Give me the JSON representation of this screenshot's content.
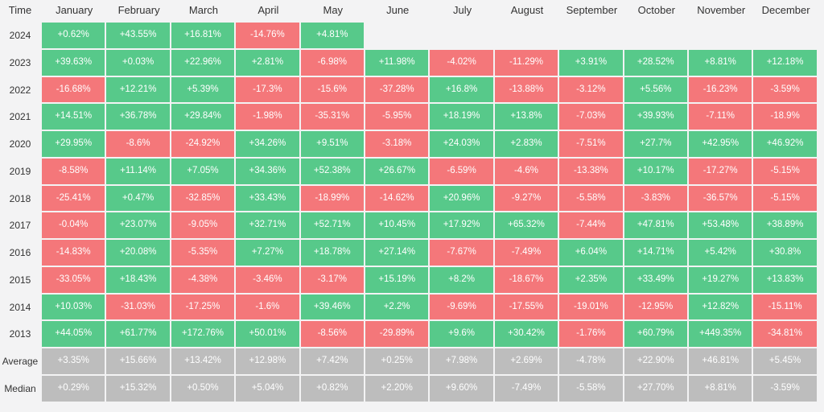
{
  "chart_data": {
    "type": "heatmap",
    "corner_label": "Time",
    "columns": [
      "January",
      "February",
      "March",
      "April",
      "May",
      "June",
      "July",
      "August",
      "September",
      "October",
      "November",
      "December"
    ],
    "rows": [
      {
        "label": "2024",
        "values": [
          0.62,
          43.55,
          16.81,
          -14.76,
          4.81,
          null,
          null,
          null,
          null,
          null,
          null,
          null
        ],
        "labels": [
          "+0.62%",
          "+43.55%",
          "+16.81%",
          "-14.76%",
          "+4.81%",
          "",
          "",
          "",
          "",
          "",
          "",
          ""
        ]
      },
      {
        "label": "2023",
        "values": [
          39.63,
          0.03,
          22.96,
          2.81,
          -6.98,
          11.98,
          -4.02,
          -11.29,
          3.91,
          28.52,
          8.81,
          12.18
        ],
        "labels": [
          "+39.63%",
          "+0.03%",
          "+22.96%",
          "+2.81%",
          "-6.98%",
          "+11.98%",
          "-4.02%",
          "-11.29%",
          "+3.91%",
          "+28.52%",
          "+8.81%",
          "+12.18%"
        ]
      },
      {
        "label": "2022",
        "values": [
          -16.68,
          12.21,
          5.39,
          -17.3,
          -15.6,
          -37.28,
          16.8,
          -13.88,
          -3.12,
          5.56,
          -16.23,
          -3.59
        ],
        "labels": [
          "-16.68%",
          "+12.21%",
          "+5.39%",
          "-17.3%",
          "-15.6%",
          "-37.28%",
          "+16.8%",
          "-13.88%",
          "-3.12%",
          "+5.56%",
          "-16.23%",
          "-3.59%"
        ]
      },
      {
        "label": "2021",
        "values": [
          14.51,
          36.78,
          29.84,
          -1.98,
          -35.31,
          -5.95,
          18.19,
          13.8,
          -7.03,
          39.93,
          -7.11,
          -18.9
        ],
        "labels": [
          "+14.51%",
          "+36.78%",
          "+29.84%",
          "-1.98%",
          "-35.31%",
          "-5.95%",
          "+18.19%",
          "+13.8%",
          "-7.03%",
          "+39.93%",
          "-7.11%",
          "-18.9%"
        ]
      },
      {
        "label": "2020",
        "values": [
          29.95,
          -8.6,
          -24.92,
          34.26,
          9.51,
          -3.18,
          24.03,
          2.83,
          -7.51,
          27.7,
          42.95,
          46.92
        ],
        "labels": [
          "+29.95%",
          "-8.6%",
          "-24.92%",
          "+34.26%",
          "+9.51%",
          "-3.18%",
          "+24.03%",
          "+2.83%",
          "-7.51%",
          "+27.7%",
          "+42.95%",
          "+46.92%"
        ]
      },
      {
        "label": "2019",
        "values": [
          -8.58,
          11.14,
          7.05,
          34.36,
          52.38,
          26.67,
          -6.59,
          -4.6,
          -13.38,
          10.17,
          -17.27,
          -5.15
        ],
        "labels": [
          "-8.58%",
          "+11.14%",
          "+7.05%",
          "+34.36%",
          "+52.38%",
          "+26.67%",
          "-6.59%",
          "-4.6%",
          "-13.38%",
          "+10.17%",
          "-17.27%",
          "-5.15%"
        ]
      },
      {
        "label": "2018",
        "values": [
          -25.41,
          0.47,
          -32.85,
          33.43,
          -18.99,
          -14.62,
          20.96,
          -9.27,
          -5.58,
          -3.83,
          -36.57,
          -5.15
        ],
        "labels": [
          "-25.41%",
          "+0.47%",
          "-32.85%",
          "+33.43%",
          "-18.99%",
          "-14.62%",
          "+20.96%",
          "-9.27%",
          "-5.58%",
          "-3.83%",
          "-36.57%",
          "-5.15%"
        ]
      },
      {
        "label": "2017",
        "values": [
          -0.04,
          23.07,
          -9.05,
          32.71,
          52.71,
          10.45,
          17.92,
          65.32,
          -7.44,
          47.81,
          53.48,
          38.89
        ],
        "labels": [
          "-0.04%",
          "+23.07%",
          "-9.05%",
          "+32.71%",
          "+52.71%",
          "+10.45%",
          "+17.92%",
          "+65.32%",
          "-7.44%",
          "+47.81%",
          "+53.48%",
          "+38.89%"
        ]
      },
      {
        "label": "2016",
        "values": [
          -14.83,
          20.08,
          -5.35,
          7.27,
          18.78,
          27.14,
          -7.67,
          -7.49,
          6.04,
          14.71,
          5.42,
          30.8
        ],
        "labels": [
          "-14.83%",
          "+20.08%",
          "-5.35%",
          "+7.27%",
          "+18.78%",
          "+27.14%",
          "-7.67%",
          "-7.49%",
          "+6.04%",
          "+14.71%",
          "+5.42%",
          "+30.8%"
        ]
      },
      {
        "label": "2015",
        "values": [
          -33.05,
          18.43,
          -4.38,
          -3.46,
          -3.17,
          15.19,
          8.2,
          -18.67,
          2.35,
          33.49,
          19.27,
          13.83
        ],
        "labels": [
          "-33.05%",
          "+18.43%",
          "-4.38%",
          "-3.46%",
          "-3.17%",
          "+15.19%",
          "+8.2%",
          "-18.67%",
          "+2.35%",
          "+33.49%",
          "+19.27%",
          "+13.83%"
        ]
      },
      {
        "label": "2014",
        "values": [
          10.03,
          -31.03,
          -17.25,
          -1.6,
          39.46,
          2.2,
          -9.69,
          -17.55,
          -19.01,
          -12.95,
          12.82,
          -15.11
        ],
        "labels": [
          "+10.03%",
          "-31.03%",
          "-17.25%",
          "-1.6%",
          "+39.46%",
          "+2.2%",
          "-9.69%",
          "-17.55%",
          "-19.01%",
          "-12.95%",
          "+12.82%",
          "-15.11%"
        ]
      },
      {
        "label": "2013",
        "values": [
          44.05,
          61.77,
          172.76,
          50.01,
          -8.56,
          -29.89,
          9.6,
          30.42,
          -1.76,
          60.79,
          449.35,
          -34.81
        ],
        "labels": [
          "+44.05%",
          "+61.77%",
          "+172.76%",
          "+50.01%",
          "-8.56%",
          "-29.89%",
          "+9.6%",
          "+30.42%",
          "-1.76%",
          "+60.79%",
          "+449.35%",
          "-34.81%"
        ]
      },
      {
        "label": "Average",
        "summary": true,
        "values": [
          3.35,
          15.66,
          13.42,
          12.98,
          7.42,
          0.25,
          7.98,
          2.69,
          -4.78,
          22.9,
          46.81,
          5.45
        ],
        "labels": [
          "+3.35%",
          "+15.66%",
          "+13.42%",
          "+12.98%",
          "+7.42%",
          "+0.25%",
          "+7.98%",
          "+2.69%",
          "-4.78%",
          "+22.90%",
          "+46.81%",
          "+5.45%"
        ]
      },
      {
        "label": "Median",
        "summary": true,
        "values": [
          0.29,
          15.32,
          0.5,
          5.04,
          0.82,
          2.2,
          9.6,
          -7.49,
          -5.58,
          27.7,
          8.81,
          -3.59
        ],
        "labels": [
          "+0.29%",
          "+15.32%",
          "+0.50%",
          "+5.04%",
          "+0.82%",
          "+2.20%",
          "+9.60%",
          "-7.49%",
          "-5.58%",
          "+27.70%",
          "+8.81%",
          "-3.59%"
        ]
      }
    ],
    "colors": {
      "positive": "#57c98a",
      "negative": "#f4777a",
      "summary": "#bdbdbd",
      "gap": "#f3f3f4"
    },
    "legend": "none"
  }
}
